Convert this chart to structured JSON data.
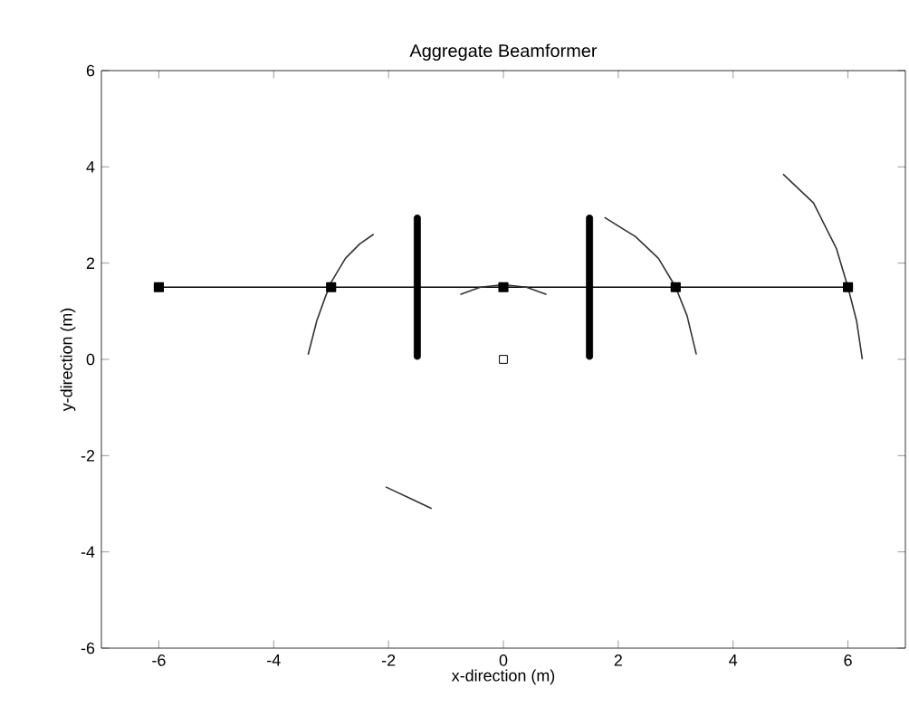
{
  "chart_data": {
    "type": "line",
    "title": "Aggregate Beamformer",
    "xlabel": "x-direction (m)",
    "ylabel": "y-direction (m)",
    "xlim": [
      -7,
      7
    ],
    "xticks": [
      -6,
      -4,
      -2,
      0,
      2,
      4,
      6
    ],
    "ylim": [
      -6,
      6
    ],
    "yticks": [
      -6,
      -4,
      -2,
      0,
      2,
      4,
      6
    ],
    "grid": false,
    "series": [
      {
        "color": "#000000",
        "marker": "square",
        "x": [
          -6,
          -3,
          0,
          3,
          6
        ],
        "values": [
          1.5,
          1.5,
          1.5,
          1.5,
          1.5
        ]
      },
      {
        "type": "bar",
        "color": "#000000",
        "x": [
          -1.5,
          1.5
        ],
        "values": [
          3,
          3
        ]
      },
      {
        "color": "#333333",
        "marker": "none",
        "x": [
          -3.4,
          -3.25,
          -3.1,
          -3.0,
          -2.75,
          -2.5,
          -2.26
        ],
        "values": [
          0.1,
          0.8,
          1.3,
          1.6,
          2.1,
          2.4,
          2.6
        ]
      },
      {
        "color": "#333333",
        "marker": "none",
        "x": [
          -0.75,
          -0.4,
          0,
          0.4,
          0.75
        ],
        "values": [
          1.35,
          1.5,
          1.55,
          1.5,
          1.35
        ]
      },
      {
        "color": "#333333",
        "marker": "none",
        "x": [
          1.76,
          2.3,
          2.7,
          3.0,
          3.2,
          3.36
        ],
        "values": [
          2.95,
          2.55,
          2.1,
          1.5,
          0.9,
          0.1
        ]
      },
      {
        "color": "#333333",
        "marker": "none",
        "x": [
          4.87,
          5.4,
          5.8,
          6.0,
          6.15,
          6.25
        ],
        "values": [
          3.85,
          3.25,
          2.3,
          1.5,
          0.8,
          0.0
        ]
      },
      {
        "color": "#333333",
        "marker": "none",
        "x": [
          -2.05,
          -1.6,
          -1.25
        ],
        "values": [
          -2.65,
          -2.9,
          -3.1
        ]
      },
      {
        "type": "scatter",
        "color": "#000000",
        "marker": "square",
        "x": [
          0
        ],
        "values": [
          0
        ]
      }
    ]
  }
}
